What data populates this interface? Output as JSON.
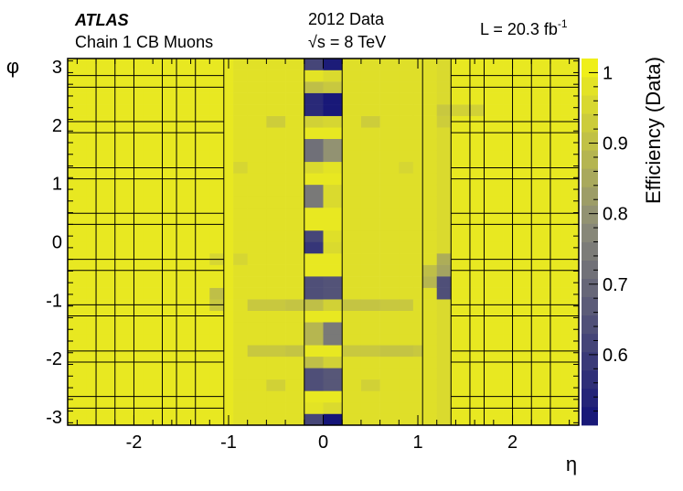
{
  "labels": {
    "experiment": "ATLAS",
    "subtitle": "Chain 1 CB Muons",
    "dataset": "2012 Data",
    "energy_prefix": "√",
    "energy_rest": "s = 8 TeV",
    "luminosity": "L = 20.3 fb",
    "luminosity_exp": "-1"
  },
  "chart_data": {
    "type": "heatmap",
    "xlabel": "η",
    "ylabel": "φ",
    "zlabel": "Efficiency (Data)",
    "xlim": [
      -2.7,
      2.7
    ],
    "ylim": [
      -3.1416,
      3.1416
    ],
    "zlim": [
      0.5,
      1.02
    ],
    "x_ticks": [
      -2,
      -1,
      0,
      1,
      2
    ],
    "x_tick_labels": [
      "-2",
      "-1",
      "0",
      "1",
      "2"
    ],
    "y_ticks": [
      -3,
      -2,
      -1,
      0,
      1,
      2,
      3
    ],
    "y_tick_labels": [
      "-3",
      "-2",
      "-1",
      "0",
      "1",
      "2",
      "3"
    ],
    "z_ticks": [
      0.6,
      0.7,
      0.8,
      0.9,
      1.0
    ],
    "z_tick_labels": [
      "0.6",
      "0.7",
      "0.8",
      "0.9",
      "1"
    ],
    "x_edges": [
      -2.7,
      -2.5,
      -2.4,
      -2.2,
      -2.0,
      -1.9,
      -1.7,
      -1.55,
      -1.35,
      -1.2,
      -1.05,
      -0.95,
      -0.8,
      -0.6,
      -0.4,
      -0.2,
      0.0,
      0.2,
      0.4,
      0.6,
      0.8,
      0.95,
      1.05,
      1.2,
      1.35,
      1.55,
      1.7,
      1.9,
      2.0,
      2.2,
      2.4,
      2.5,
      2.7
    ],
    "y_edges": [
      -3.1416,
      -2.9452,
      -2.7489,
      -2.5525,
      -2.3562,
      -2.1598,
      -1.9635,
      -1.7671,
      -1.5708,
      -1.3744,
      -1.1781,
      -0.9817,
      -0.7854,
      -0.589,
      -0.3927,
      -0.1963,
      0.0,
      0.1963,
      0.3927,
      0.589,
      0.7854,
      0.9817,
      1.1781,
      1.3744,
      1.5708,
      1.7671,
      1.9635,
      2.1598,
      2.3562,
      2.5525,
      2.7489,
      2.9452,
      3.1416
    ],
    "z_default": 0.99,
    "z_column_defaults": [
      {
        "x_range": [
          -0.95,
          -0.2
        ],
        "z": 0.975
      },
      {
        "x_range": [
          0.2,
          1.2
        ],
        "z": 0.97
      },
      {
        "x_range": [
          1.2,
          1.35
        ],
        "z": 0.96
      }
    ],
    "z_overrides": [
      {
        "x": -0.1,
        "y": 3.04,
        "z": 0.62
      },
      {
        "x": 0.1,
        "y": 3.04,
        "z": 0.52
      },
      {
        "x": -0.1,
        "y": 2.85,
        "z": 0.98
      },
      {
        "x": 0.1,
        "y": 2.85,
        "z": 0.96
      },
      {
        "x": -0.1,
        "y": 2.65,
        "z": 0.9
      },
      {
        "x": 0.1,
        "y": 2.65,
        "z": 0.92
      },
      {
        "x": -0.1,
        "y": 2.45,
        "z": 0.55
      },
      {
        "x": 0.1,
        "y": 2.45,
        "z": 0.51
      },
      {
        "x": -0.1,
        "y": 2.26,
        "z": 0.55
      },
      {
        "x": 0.1,
        "y": 2.26,
        "z": 0.51
      },
      {
        "x": -0.1,
        "y": 2.06,
        "z": 0.94
      },
      {
        "x": 0.1,
        "y": 2.06,
        "z": 0.95
      },
      {
        "x": -0.1,
        "y": 1.67,
        "z": 0.72
      },
      {
        "x": 0.1,
        "y": 1.67,
        "z": 0.8
      },
      {
        "x": -0.1,
        "y": 1.47,
        "z": 0.72
      },
      {
        "x": 0.1,
        "y": 1.47,
        "z": 0.8
      },
      {
        "x": -0.1,
        "y": 1.28,
        "z": 0.96
      },
      {
        "x": 0.1,
        "y": 1.28,
        "z": 0.98
      },
      {
        "x": -0.1,
        "y": 0.88,
        "z": 0.74
      },
      {
        "x": 0.1,
        "y": 0.88,
        "z": 0.96
      },
      {
        "x": -0.1,
        "y": 0.69,
        "z": 0.74
      },
      {
        "x": 0.1,
        "y": 0.69,
        "z": 0.96
      },
      {
        "x": -0.1,
        "y": 0.1,
        "z": 0.62
      },
      {
        "x": 0.1,
        "y": 0.1,
        "z": 0.97
      },
      {
        "x": -0.1,
        "y": -0.1,
        "z": 0.58
      },
      {
        "x": 0.1,
        "y": -0.1,
        "z": 0.96
      },
      {
        "x": -0.1,
        "y": -0.69,
        "z": 0.64
      },
      {
        "x": 0.1,
        "y": -0.69,
        "z": 0.65
      },
      {
        "x": -0.1,
        "y": -0.88,
        "z": 0.64
      },
      {
        "x": 0.1,
        "y": -0.88,
        "z": 0.65
      },
      {
        "x": -0.1,
        "y": -1.08,
        "z": 0.9
      },
      {
        "x": 0.1,
        "y": -1.08,
        "z": 0.94
      },
      {
        "x": -0.1,
        "y": -1.47,
        "z": 0.88
      },
      {
        "x": 0.1,
        "y": -1.47,
        "z": 0.74
      },
      {
        "x": -0.1,
        "y": -1.67,
        "z": 0.88
      },
      {
        "x": 0.1,
        "y": -1.67,
        "z": 0.74
      },
      {
        "x": -0.1,
        "y": -2.06,
        "z": 0.9
      },
      {
        "x": 0.1,
        "y": -2.06,
        "z": 0.94
      },
      {
        "x": -0.1,
        "y": -2.26,
        "z": 0.64
      },
      {
        "x": 0.1,
        "y": -2.26,
        "z": 0.66
      },
      {
        "x": -0.1,
        "y": -2.45,
        "z": 0.64
      },
      {
        "x": 0.1,
        "y": -2.45,
        "z": 0.66
      },
      {
        "x": -0.1,
        "y": -2.85,
        "z": 0.98
      },
      {
        "x": 0.1,
        "y": -2.85,
        "z": 0.96
      },
      {
        "x": -0.1,
        "y": -3.04,
        "z": 0.62
      },
      {
        "x": 0.1,
        "y": -3.04,
        "z": 0.5
      },
      {
        "x": 1.28,
        "y": -0.69,
        "z": 0.64
      },
      {
        "x": 1.28,
        "y": -0.88,
        "z": 0.64
      },
      {
        "x": 1.28,
        "y": -0.49,
        "z": 0.84
      },
      {
        "x": 1.28,
        "y": -0.29,
        "z": 0.86
      },
      {
        "x": 1.12,
        "y": -0.69,
        "z": 0.88
      },
      {
        "x": 1.12,
        "y": -0.49,
        "z": 0.9
      },
      {
        "x": -1.12,
        "y": -0.88,
        "z": 0.9
      },
      {
        "x": -1.12,
        "y": -1.08,
        "z": 0.92
      },
      {
        "x": -0.7,
        "y": -1.08,
        "z": 0.92
      },
      {
        "x": -0.5,
        "y": -1.08,
        "z": 0.92
      },
      {
        "x": -0.3,
        "y": -1.08,
        "z": 0.91
      },
      {
        "x": 0.3,
        "y": -1.08,
        "z": 0.91
      },
      {
        "x": 0.5,
        "y": -1.08,
        "z": 0.91
      },
      {
        "x": 0.7,
        "y": -1.08,
        "z": 0.92
      },
      {
        "x": 0.88,
        "y": -1.08,
        "z": 0.92
      },
      {
        "x": -0.7,
        "y": -1.86,
        "z": 0.92
      },
      {
        "x": -0.5,
        "y": -1.86,
        "z": 0.92
      },
      {
        "x": -0.3,
        "y": -1.86,
        "z": 0.91
      },
      {
        "x": 0.3,
        "y": -1.86,
        "z": 0.92
      },
      {
        "x": 0.5,
        "y": -1.86,
        "z": 0.92
      },
      {
        "x": 0.7,
        "y": -1.86,
        "z": 0.91
      },
      {
        "x": 0.88,
        "y": -1.86,
        "z": 0.91
      },
      {
        "x": 1.0,
        "y": -1.86,
        "z": 0.92
      },
      {
        "x": -0.5,
        "y": 2.06,
        "z": 0.93
      },
      {
        "x": 0.5,
        "y": 2.06,
        "z": 0.93
      },
      {
        "x": 1.28,
        "y": 2.06,
        "z": 0.93
      },
      {
        "x": 1.28,
        "y": 2.26,
        "z": 0.92
      },
      {
        "x": 1.45,
        "y": 2.26,
        "z": 0.94
      },
      {
        "x": 1.62,
        "y": 2.26,
        "z": 0.94
      },
      {
        "x": -0.88,
        "y": 1.28,
        "z": 0.95
      },
      {
        "x": 0.88,
        "y": 1.28,
        "z": 0.95
      },
      {
        "x": -1.12,
        "y": -0.29,
        "z": 0.95
      },
      {
        "x": -0.88,
        "y": -0.29,
        "z": 0.95
      },
      {
        "x": -0.5,
        "y": -2.45,
        "z": 0.94
      },
      {
        "x": 0.5,
        "y": -2.45,
        "z": 0.94
      }
    ],
    "grid": true
  }
}
